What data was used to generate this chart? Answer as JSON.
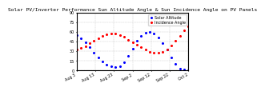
{
  "title": "Solar PV/Inverter Performance Sun Altitude Angle & Sun Incidence Angle on PV Panels",
  "legend_blue": "Solar Altitude",
  "legend_red": "Incidence Angle",
  "blue_x": [
    0,
    1,
    2,
    3,
    4,
    5,
    6,
    7,
    8,
    9,
    10,
    11,
    12,
    13,
    14,
    15,
    16,
    17,
    18,
    19,
    20,
    21,
    22,
    23,
    24,
    25,
    26
  ],
  "blue_y": [
    55,
    50,
    44,
    36,
    28,
    20,
    14,
    9,
    6,
    5,
    7,
    13,
    22,
    34,
    46,
    54,
    59,
    60,
    57,
    51,
    42,
    32,
    20,
    10,
    3,
    1,
    0
  ],
  "red_x": [
    0,
    1,
    2,
    3,
    4,
    5,
    6,
    7,
    8,
    9,
    10,
    11,
    12,
    13,
    14,
    15,
    16,
    17,
    18,
    19,
    20,
    21,
    22,
    23,
    24,
    25,
    26
  ],
  "red_y": [
    32,
    35,
    38,
    42,
    46,
    50,
    54,
    56,
    57,
    57,
    55,
    52,
    48,
    44,
    40,
    36,
    32,
    29,
    27,
    27,
    29,
    33,
    39,
    46,
    54,
    62,
    68
  ],
  "blue_color": "#0000ff",
  "red_color": "#ff0000",
  "ylim": [
    0,
    90
  ],
  "yticks": [
    0,
    15,
    30,
    45,
    60,
    75,
    90
  ],
  "xlabel": "",
  "ylabel": "",
  "bg_color": "#ffffff",
  "grid_color": "#aaaaaa",
  "title_fontsize": 4.5,
  "legend_fontsize": 3.5,
  "tick_fontsize": 3.5,
  "marker_size": 1.2
}
